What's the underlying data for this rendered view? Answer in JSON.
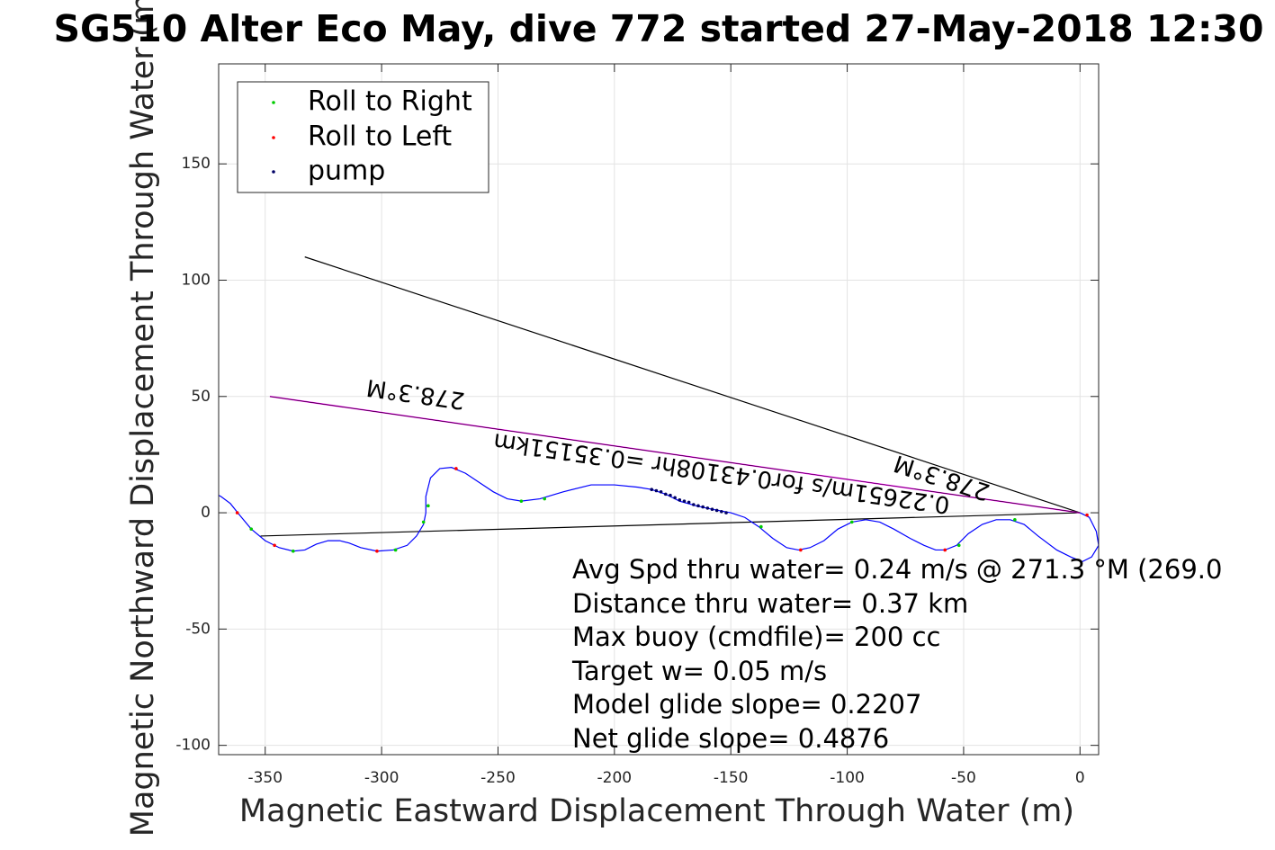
{
  "chart_data": {
    "type": "scatter",
    "title": "SG510 Alter Eco May, dive 772 started 27-May-2018 12:30",
    "xlabel": "Magnetic Eastward Displacement Through Water (m)",
    "ylabel": "Magnetic Northward Displacement Through Water (m)",
    "xlim": [
      -370,
      8
    ],
    "ylim": [
      -104,
      193
    ],
    "xticks": [
      -350,
      -300,
      -250,
      -200,
      -150,
      -100,
      -50,
      0
    ],
    "xtick_labels": [
      "-350",
      "-300",
      "-250",
      "-200",
      "-150",
      "-100",
      "-50",
      "0"
    ],
    "yticks": [
      -100,
      -50,
      0,
      50,
      100,
      150
    ],
    "ytick_labels": [
      "-100",
      "-50",
      "0",
      "50",
      "100",
      "150"
    ],
    "grid": true,
    "legend_location": "top-left",
    "colors": {
      "track": "#0000ff",
      "roll_right": "#00cc00",
      "roll_left": "#ff0000",
      "pump": "#000066",
      "course": "#000000",
      "heading": "#ff00ff"
    },
    "legend": [
      "Roll to Right",
      "Roll to Left",
      "pump"
    ],
    "track": [
      [
        0,
        0
      ],
      [
        4,
        -2
      ],
      [
        7,
        -8
      ],
      [
        8,
        -14
      ],
      [
        5,
        -19
      ],
      [
        1,
        -21
      ],
      [
        -4,
        -19
      ],
      [
        -10,
        -16
      ],
      [
        -18,
        -10
      ],
      [
        -24,
        -5
      ],
      [
        -30,
        -3
      ],
      [
        -36,
        -3
      ],
      [
        -42,
        -5
      ],
      [
        -48,
        -9
      ],
      [
        -53,
        -14
      ],
      [
        -58,
        -16
      ],
      [
        -62,
        -16
      ],
      [
        -67,
        -14
      ],
      [
        -73,
        -11
      ],
      [
        -80,
        -7
      ],
      [
        -86,
        -4
      ],
      [
        -92,
        -3
      ],
      [
        -98,
        -4
      ],
      [
        -104,
        -7
      ],
      [
        -110,
        -12
      ],
      [
        -116,
        -15
      ],
      [
        -121,
        -16
      ],
      [
        -126,
        -15
      ],
      [
        -132,
        -11
      ],
      [
        -138,
        -6
      ],
      [
        -144,
        -2
      ],
      [
        -150,
        0
      ],
      [
        -158,
        1.5
      ],
      [
        -165,
        3
      ],
      [
        -172,
        5
      ],
      [
        -178,
        8
      ],
      [
        -184,
        10
      ],
      [
        -190,
        11
      ],
      [
        -200,
        12
      ],
      [
        -210,
        12
      ],
      [
        -222,
        9
      ],
      [
        -232,
        6
      ],
      [
        -240,
        5
      ],
      [
        -246,
        6
      ],
      [
        -252,
        9
      ],
      [
        -258,
        13
      ],
      [
        -264,
        17
      ],
      [
        -270,
        19.5
      ],
      [
        -275,
        19
      ],
      [
        -279,
        15
      ],
      [
        -281,
        7
      ],
      [
        -281,
        0
      ],
      [
        -282,
        -5
      ],
      [
        -285,
        -10
      ],
      [
        -289,
        -14
      ],
      [
        -295,
        -16
      ],
      [
        -302,
        -16.5
      ],
      [
        -309,
        -15
      ],
      [
        -314,
        -13
      ],
      [
        -318,
        -12
      ],
      [
        -323,
        -12
      ],
      [
        -328,
        -13.5
      ],
      [
        -333,
        -16
      ],
      [
        -338,
        -16.5
      ],
      [
        -344,
        -15
      ],
      [
        -350,
        -12
      ],
      [
        -356,
        -7
      ],
      [
        -361,
        -1
      ],
      [
        -365,
        4
      ],
      [
        -369,
        7
      ],
      [
        -372,
        8.5
      ]
    ],
    "roll_right_points": [
      [
        -28,
        -3
      ],
      [
        -52,
        -14
      ],
      [
        -98,
        -4
      ],
      [
        -137,
        -6
      ],
      [
        -230,
        6
      ],
      [
        -240,
        5
      ],
      [
        -280,
        3
      ],
      [
        -282,
        -4
      ],
      [
        -338,
        -16.5
      ],
      [
        -356,
        -7
      ],
      [
        -294,
        -16
      ]
    ],
    "roll_left_points": [
      [
        3,
        -1
      ],
      [
        -58,
        -16
      ],
      [
        -120,
        -16
      ],
      [
        -268,
        19
      ],
      [
        -362,
        0
      ],
      [
        -302,
        -16.5
      ],
      [
        -346,
        -14
      ]
    ],
    "pump_points": [
      [
        -184,
        10
      ],
      [
        -182,
        9.5
      ],
      [
        -180,
        9
      ],
      [
        -178,
        8
      ],
      [
        -176,
        7.5
      ],
      [
        -174,
        6.5
      ],
      [
        -172,
        5.5
      ],
      [
        -170,
        5
      ],
      [
        -168,
        4.5
      ],
      [
        -166,
        3.5
      ],
      [
        -164,
        3
      ],
      [
        -162,
        2.5
      ],
      [
        -160,
        2
      ],
      [
        -158,
        1.5
      ],
      [
        -156,
        1
      ],
      [
        -154,
        0.5
      ],
      [
        -152,
        0
      ]
    ],
    "lines": {
      "course_line": [
        [
          0,
          0
        ],
        [
          -333,
          110
        ]
      ],
      "current_line": [
        [
          0,
          0
        ],
        [
          -352,
          -10
        ]
      ],
      "heading_line": [
        [
          0,
          0
        ],
        [
          -348,
          50
        ]
      ]
    },
    "annotations": [
      "278.3°M",
      "0.22651m/s for0.43108hr =0.35151km",
      "278.3°M"
    ],
    "stats": [
      "Avg Spd thru water=  0.24 m/s @ 271.3 °M (269.0",
      "Distance thru water=  0.37 km",
      "Max buoy (cmdfile)= 200 cc",
      "Target w= 0.05 m/s",
      "Model glide slope= 0.2207",
      "Net glide slope= 0.4876"
    ]
  }
}
